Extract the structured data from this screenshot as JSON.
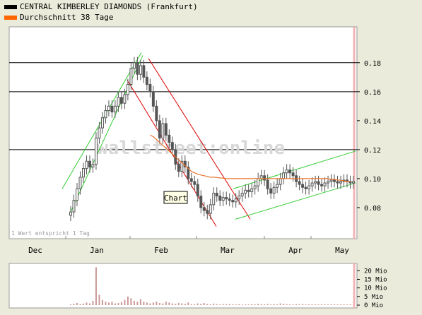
{
  "legend": [
    {
      "label": "CENTRAL KIMBERLEY DIAMONDS (Frankfurt)",
      "color": "#000000"
    },
    {
      "label": "Durchschnitt 38 Tage",
      "color": "#ff6600"
    }
  ],
  "watermark": "wallstreet:online",
  "note": "1 Wert entspricht 1 Tag",
  "tooltip": "Chart",
  "colors": {
    "plot_bg": "#ffffff",
    "candle": "#555555",
    "ma": "#e8742c",
    "trend_red": "#dd0000",
    "trend_green": "#33cc33",
    "volume": "#cc9999"
  },
  "chart_data": [
    {
      "type": "candlestick",
      "title": "",
      "xlabel": "",
      "ylabel": "",
      "x_ticks": [
        "Dec",
        "Jan",
        "Feb",
        "Mar",
        "Apr",
        "May"
      ],
      "y_ticks": [
        "0.08",
        "0.10",
        "0.12",
        "0.14",
        "0.16",
        "0.18"
      ],
      "ylim": [
        0.06,
        0.195
      ],
      "grid": "horizontal at 0.12, 0.16, 0.18",
      "series": [
        {
          "name": "CENTRAL KIMBERLEY DIAMONDS (Frankfurt)",
          "x": [
            "Jan 06",
            "Jan 07",
            "Jan 08",
            "Jan 09",
            "Jan 10",
            "Jan 13",
            "Jan 14",
            "Jan 15",
            "Jan 16",
            "Jan 17",
            "Jan 20",
            "Jan 21",
            "Jan 22",
            "Jan 23",
            "Jan 24",
            "Jan 27",
            "Jan 28",
            "Jan 29",
            "Jan 30",
            "Jan 31",
            "Feb 03",
            "Feb 04",
            "Feb 05",
            "Feb 06",
            "Feb 07",
            "Feb 10",
            "Feb 11",
            "Feb 12",
            "Feb 13",
            "Feb 14",
            "Feb 17",
            "Feb 18",
            "Feb 19",
            "Feb 20",
            "Feb 21",
            "Feb 24",
            "Feb 25",
            "Feb 26",
            "Feb 27",
            "Feb 28",
            "Mar 03",
            "Mar 04",
            "Mar 05",
            "Mar 06",
            "Mar 07",
            "Mar 10",
            "Mar 11",
            "Mar 12",
            "Mar 13",
            "Mar 14",
            "Mar 17",
            "Mar 18",
            "Mar 19",
            "Mar 20",
            "Mar 21",
            "Mar 24",
            "Mar 25",
            "Mar 26",
            "Mar 27",
            "Mar 28",
            "Mar 31",
            "Apr 01",
            "Apr 02",
            "Apr 03",
            "Apr 04",
            "Apr 07",
            "Apr 08",
            "Apr 09",
            "Apr 10",
            "Apr 11",
            "Apr 14",
            "Apr 15",
            "Apr 16",
            "Apr 17",
            "Apr 22",
            "Apr 23",
            "Apr 24",
            "Apr 25",
            "Apr 28",
            "Apr 29",
            "Apr 30",
            "May 02",
            "May 05",
            "May 06",
            "May 07",
            "May 08",
            "May 09",
            "May 12",
            "May 13",
            "May 14"
          ],
          "close": [
            0.077,
            0.085,
            0.093,
            0.101,
            0.107,
            0.112,
            0.108,
            0.11,
            0.128,
            0.135,
            0.142,
            0.147,
            0.15,
            0.146,
            0.15,
            0.156,
            0.152,
            0.158,
            0.165,
            0.176,
            0.18,
            0.172,
            0.178,
            0.17,
            0.165,
            0.16,
            0.15,
            0.14,
            0.128,
            0.138,
            0.13,
            0.125,
            0.12,
            0.11,
            0.105,
            0.112,
            0.108,
            0.1,
            0.098,
            0.096,
            0.088,
            0.08,
            0.078,
            0.076,
            0.082,
            0.09,
            0.088,
            0.085,
            0.087,
            0.086,
            0.085,
            0.084,
            0.086,
            0.088,
            0.09,
            0.092,
            0.091,
            0.093,
            0.095,
            0.1,
            0.102,
            0.099,
            0.093,
            0.09,
            0.094,
            0.096,
            0.1,
            0.104,
            0.106,
            0.104,
            0.102,
            0.098,
            0.096,
            0.094,
            0.093,
            0.095,
            0.097,
            0.098,
            0.096,
            0.095,
            0.097,
            0.098,
            0.099,
            0.098,
            0.097,
            0.098,
            0.099,
            0.098,
            0.097,
            0.098
          ],
          "volume_mio": [
            0.5,
            0.8,
            1.2,
            0.6,
            0.9,
            1.5,
            1.0,
            2.5,
            22,
            6,
            3,
            2,
            1.5,
            2,
            1,
            1.2,
            1.8,
            3,
            5,
            4,
            2.5,
            2,
            3.5,
            2,
            1.5,
            1,
            1.5,
            2,
            1.2,
            1,
            2,
            1.5,
            1,
            0.8,
            1.2,
            1,
            0.8,
            1.5,
            0.6,
            0.5,
            1,
            0.8,
            1.2,
            0.7,
            0.5,
            0.9,
            0.6,
            0.4,
            0.6,
            0.5,
            0.7,
            0.5,
            0.4,
            0.6,
            0.3,
            0.5,
            0.4,
            0.6,
            0.5,
            0.8,
            0.6,
            0.5,
            0.7,
            0.4,
            0.6,
            0.5,
            1,
            0.8,
            0.6,
            0.5,
            0.4,
            0.6,
            0.5,
            0.7,
            0.4,
            0.5,
            0.6,
            0.5,
            0.4,
            0.6,
            0.5,
            0.4,
            0.6,
            0.5,
            0.4,
            0.5,
            0.6,
            0.4,
            0.5,
            0.4
          ]
        },
        {
          "name": "Durchschnitt 38 Tage",
          "start_date": "Feb 10",
          "values": [
            0.13,
            0.129,
            0.127,
            0.125,
            0.123,
            0.121,
            0.119,
            0.117,
            0.115,
            0.113,
            0.111,
            0.109,
            0.107,
            0.105,
            0.104,
            0.103,
            0.1025,
            0.102,
            0.1015,
            0.101,
            0.101,
            0.1008,
            0.1005,
            0.1003,
            0.1,
            0.1,
            0.1,
            0.1,
            0.1,
            0.1,
            0.1,
            0.1,
            0.1,
            0.1,
            0.1,
            0.1,
            0.1,
            0.1,
            0.1,
            0.1,
            0.1,
            0.1,
            0.1,
            0.1,
            0.1,
            0.1,
            0.1,
            0.1,
            0.1,
            0.1,
            0.1,
            0.1,
            0.1,
            0.1,
            0.1,
            0.1,
            0.1,
            0.0995,
            0.0995,
            0.099,
            0.099,
            0.0985,
            0.098,
            0.098
          ]
        }
      ]
    },
    {
      "type": "bar",
      "title": "",
      "xlabel": "",
      "ylabel": "",
      "y_ticks": [
        "20 Mio",
        "15 Mio",
        "10 Mio",
        "5 Mio",
        "0 Mio"
      ],
      "ylim": [
        0,
        23
      ],
      "series_ref": "volume_mio"
    }
  ]
}
